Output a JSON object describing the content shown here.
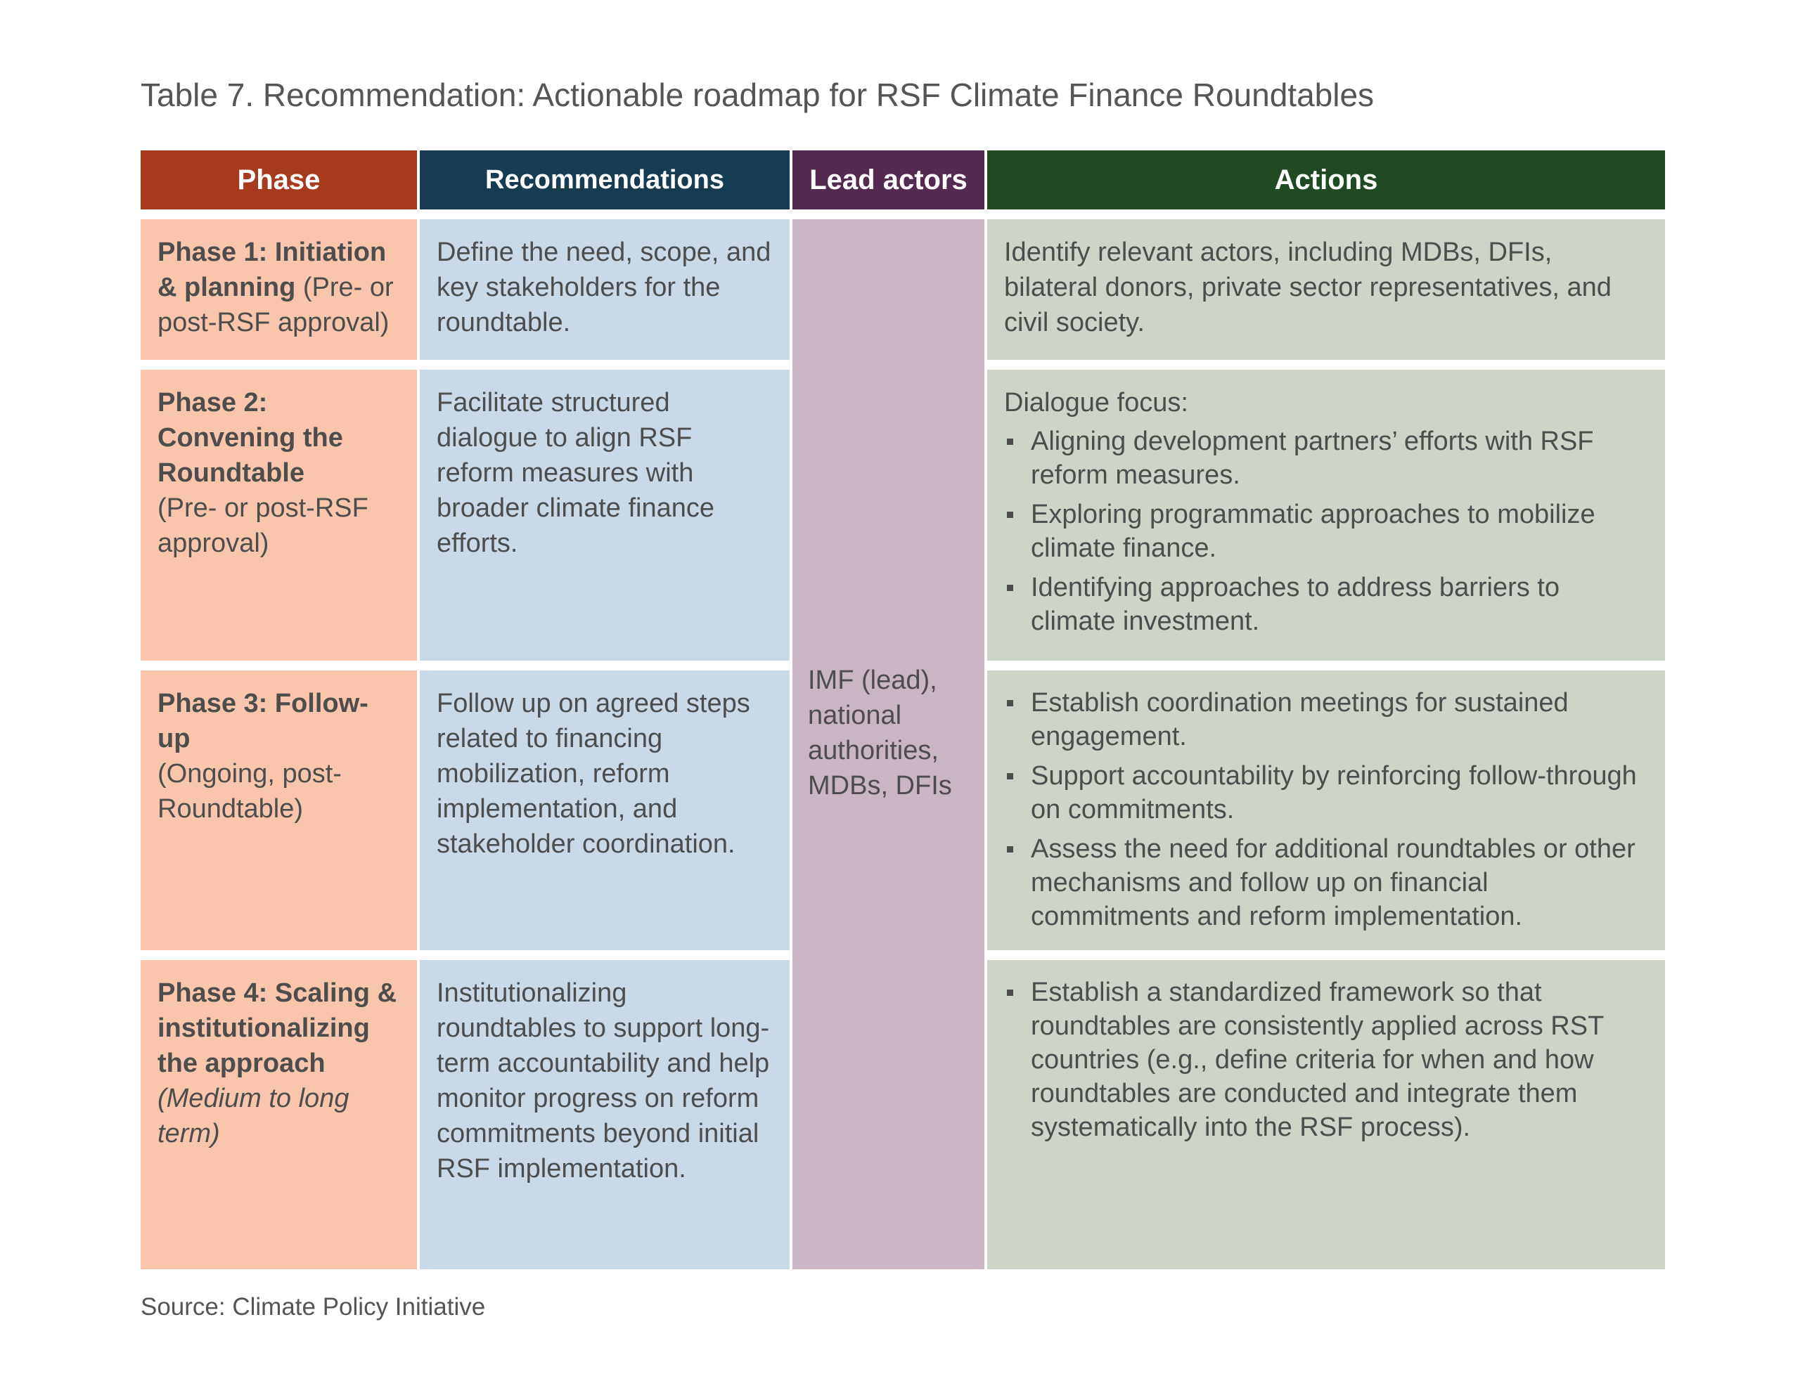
{
  "caption": "Table 7. Recommendation: Actionable roadmap for RSF Climate Finance Roundtables",
  "colors": {
    "phase_header": "#a63a1d",
    "recommendations_header": "#173b50",
    "lead_header": "#532a50",
    "actions_header": "#214a24"
  },
  "headers": {
    "phase": "Phase",
    "recommendations": "Recommendations",
    "lead_actors": "Lead actors",
    "actions": "Actions"
  },
  "lead_actors": {
    "line1": "IMF (lead),",
    "line2": "national",
    "line3": "authorities,",
    "line4": "MDBs, DFIs"
  },
  "rows": [
    {
      "phase_title": "Phase 1: Initiation & planning",
      "phase_timing": " (Pre- or post-RSF approval)",
      "recommendation": "Define the need, scope, and key stakeholders for the roundtable.",
      "actions_text": "Identify relevant actors, including MDBs, DFIs, bilateral donors, private sector representatives, and civil society."
    },
    {
      "phase_title": "Phase 2: Convening the Roundtable",
      "phase_timing": "(Pre- or post-RSF approval)",
      "recommendation": "Facilitate structured dialogue to align RSF reform measures with broader climate finance efforts.",
      "actions_label": "Dialogue focus:",
      "actions": [
        "Aligning development partners’ efforts with RSF reform measures.",
        "Exploring programmatic approaches to mobilize climate finance.",
        "Identifying approaches to address barriers to climate investment."
      ]
    },
    {
      "phase_title": "Phase 3: Follow-up",
      "phase_timing": "(Ongoing, post-Roundtable)",
      "recommendation": "Follow up on agreed steps related to financing mobilization, reform implementation, and stakeholder coordination.",
      "actions": [
        "Establish coordination meetings for sustained engagement.",
        "Support accountability by reinforcing follow-through on commitments.",
        "Assess the need for additional roundtables or other mechanisms and follow up on financial commitments and reform implementation."
      ]
    },
    {
      "phase_title": "Phase 4: Scaling & institutionalizing the approach",
      "phase_timing": "(Medium to long term)",
      "recommendation": "Institutionalizing roundtables to support long-term accountability and help monitor progress on reform commitments beyond initial RSF implementation.",
      "actions": [
        "Establish a standardized framework so that roundtables are consistently applied across RST countries (e.g., define criteria for when and how roundtables are conducted and integrate them systematically into the RSF process)."
      ]
    }
  ],
  "source": "Source: Climate Policy Initiative"
}
